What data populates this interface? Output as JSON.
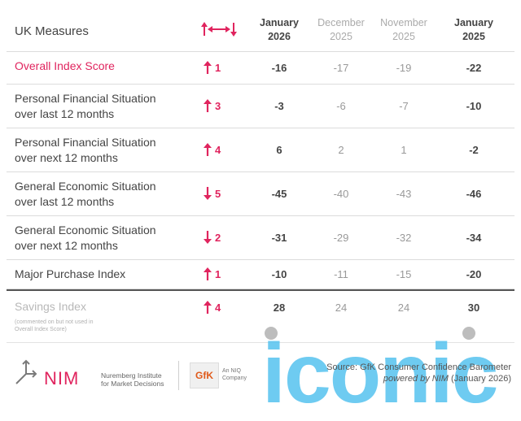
{
  "chart_data": {
    "type": "table",
    "header": {
      "title": "UK Measures",
      "change_icon": "up-left-right-down-arrows-icon",
      "columns": [
        {
          "month": "January",
          "year": "2026"
        },
        {
          "month": "December",
          "year": "2025"
        },
        {
          "month": "November",
          "year": "2025"
        },
        {
          "month": "January",
          "year": "2025"
        }
      ]
    },
    "rows": [
      {
        "label": "Overall Index Score",
        "direction": "up",
        "change": "1",
        "values": [
          "-16",
          "-17",
          "-19",
          "-22"
        ]
      },
      {
        "label": "Personal Financial Situation over last 12 months",
        "direction": "up",
        "change": "3",
        "values": [
          "-3",
          "-6",
          "-7",
          "-10"
        ]
      },
      {
        "label": "Personal Financial Situation over next 12 months",
        "direction": "up",
        "change": "4",
        "values": [
          "6",
          "2",
          "1",
          "-2"
        ]
      },
      {
        "label": "General Economic Situation over last 12 months",
        "direction": "down",
        "change": "5",
        "values": [
          "-45",
          "-40",
          "-43",
          "-46"
        ]
      },
      {
        "label": "General Economic Situation over next 12 months",
        "direction": "down",
        "change": "2",
        "values": [
          "-31",
          "-29",
          "-32",
          "-34"
        ]
      },
      {
        "label": "Major Purchase Index",
        "direction": "up",
        "change": "1",
        "values": [
          "-10",
          "-11",
          "-15",
          "-20"
        ]
      }
    ],
    "savings": {
      "label": "Savings Index",
      "note": "(commented on but not used in Overall Index Score)",
      "direction": "up",
      "change": "4",
      "values": [
        "28",
        "24",
        "24",
        "30"
      ]
    },
    "colors": {
      "accent": "#e0245e",
      "muted": "#999999",
      "watermark": "#5bc4f0"
    }
  },
  "footer": {
    "nim_logo_text": "NIM",
    "nim_line1": "Nuremberg Institute",
    "nim_line2": "for Market Decisions",
    "gfk_logo_text": "GfK",
    "gfk_sub1": "An NIQ",
    "gfk_sub2": "Company",
    "source_line1": "Source: GfK Consumer Confidence Barometer",
    "source_line2_italic": "powered by NIM",
    "source_line2_rest": " (January 2026)",
    "watermark": "iconic"
  }
}
